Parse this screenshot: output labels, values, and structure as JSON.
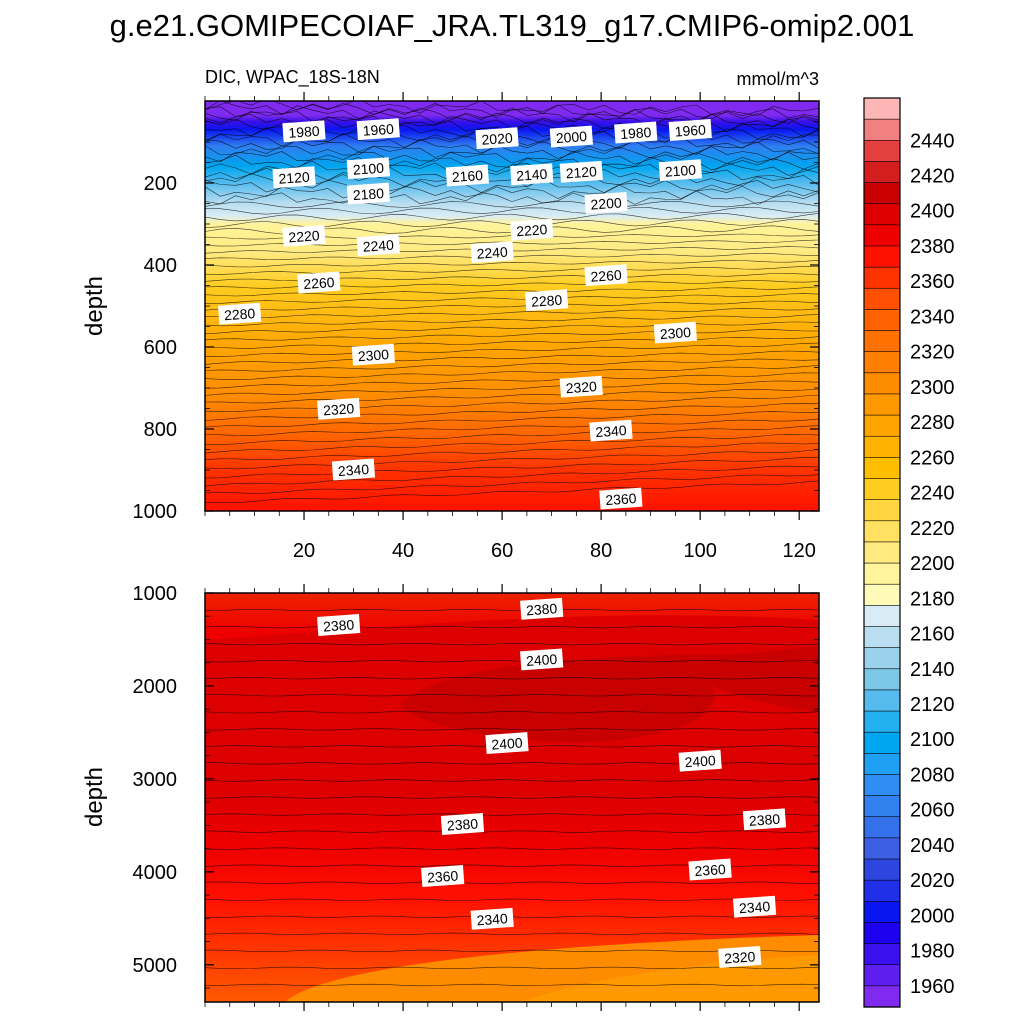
{
  "title": "g.e21.GOMIPECOIAF_JRA.TL319_g17.CMIP6-omip2.001",
  "colorbar": {
    "labels": [
      "2440",
      "2420",
      "2400",
      "2380",
      "2360",
      "2340",
      "2320",
      "2300",
      "2280",
      "2260",
      "2240",
      "2220",
      "2200",
      "2180",
      "2160",
      "2140",
      "2120",
      "2100",
      "2080",
      "2060",
      "2040",
      "2020",
      "2000",
      "1980",
      "1960"
    ],
    "colors": [
      "#fdb6b6",
      "#f28080",
      "#e54040",
      "#d41e1e",
      "#c80000",
      "#dd0000",
      "#ee0000",
      "#ff1100",
      "#ff3300",
      "#ff4f00",
      "#ff6200",
      "#ff7100",
      "#ff7f00",
      "#ff8c00",
      "#ff9900",
      "#ffa500",
      "#ffb200",
      "#ffbe00",
      "#ffcc20",
      "#ffd640",
      "#ffe060",
      "#ffea80",
      "#fff39b",
      "#fffab8",
      "#d9ecf5",
      "#b8def0",
      "#9ad2ec",
      "#7cc6e8",
      "#55bbee",
      "#22b0f0",
      "#00a6ef",
      "#1ea0f5",
      "#2f8ef2",
      "#3380f0",
      "#3470ea",
      "#3d5fe3",
      "#2e46e0",
      "#1f30e8",
      "#0a16f0",
      "#1c00ee",
      "#3c10ee",
      "#5e1fee",
      "#7f2aee"
    ]
  },
  "chart_data": [
    {
      "type": "heatmap",
      "title": "DIC, WPAC_18S-18N",
      "units": "mmol/m^3",
      "xlabel": "",
      "ylabel": "depth",
      "xlim": [
        0,
        124
      ],
      "ylim": [
        0,
        1000
      ],
      "yreversed": true,
      "x_ticks": [
        "20",
        "40",
        "60",
        "80",
        "100",
        "120"
      ],
      "y_ticks": [
        "200",
        "400",
        "600",
        "800",
        "1000"
      ],
      "contour_labels": [
        {
          "value": "1980",
          "x": 20,
          "y": 75
        },
        {
          "value": "1960",
          "x": 35,
          "y": 70
        },
        {
          "value": "2020",
          "x": 59,
          "y": 92
        },
        {
          "value": "2000",
          "x": 74,
          "y": 88
        },
        {
          "value": "1980",
          "x": 87,
          "y": 78
        },
        {
          "value": "1960",
          "x": 98,
          "y": 72
        },
        {
          "value": "2120",
          "x": 18,
          "y": 187
        },
        {
          "value": "2100",
          "x": 33,
          "y": 165
        },
        {
          "value": "2160",
          "x": 53,
          "y": 183
        },
        {
          "value": "2140",
          "x": 66,
          "y": 180
        },
        {
          "value": "2120",
          "x": 76,
          "y": 174
        },
        {
          "value": "2100",
          "x": 96,
          "y": 170
        },
        {
          "value": "2180",
          "x": 33,
          "y": 227
        },
        {
          "value": "2200",
          "x": 81,
          "y": 250
        },
        {
          "value": "2220",
          "x": 20,
          "y": 330
        },
        {
          "value": "2240",
          "x": 35,
          "y": 353
        },
        {
          "value": "2220",
          "x": 66,
          "y": 315
        },
        {
          "value": "2240",
          "x": 58,
          "y": 370
        },
        {
          "value": "2260",
          "x": 23,
          "y": 444
        },
        {
          "value": "2260",
          "x": 81,
          "y": 426
        },
        {
          "value": "2280",
          "x": 7,
          "y": 520
        },
        {
          "value": "2280",
          "x": 69,
          "y": 487
        },
        {
          "value": "2300",
          "x": 95,
          "y": 566
        },
        {
          "value": "2300",
          "x": 34,
          "y": 620
        },
        {
          "value": "2320",
          "x": 76,
          "y": 698
        },
        {
          "value": "2320",
          "x": 27,
          "y": 752
        },
        {
          "value": "2340",
          "x": 82,
          "y": 805
        },
        {
          "value": "2340",
          "x": 30,
          "y": 900
        },
        {
          "value": "2360",
          "x": 84,
          "y": 971
        }
      ]
    },
    {
      "type": "heatmap",
      "title": "",
      "xlabel": "",
      "ylabel": "depth",
      "xlim": [
        0,
        124
      ],
      "ylim": [
        1000,
        5400
      ],
      "yreversed": true,
      "x_ticks": [],
      "y_ticks": [
        "1000",
        "2000",
        "3000",
        "4000",
        "5000"
      ],
      "contour_labels": [
        {
          "value": "2380",
          "x": 68,
          "y": 1175
        },
        {
          "value": "2380",
          "x": 27,
          "y": 1350
        },
        {
          "value": "2400",
          "x": 68,
          "y": 1720
        },
        {
          "value": "2400",
          "x": 61,
          "y": 2620
        },
        {
          "value": "2400",
          "x": 100,
          "y": 2810
        },
        {
          "value": "2380",
          "x": 52,
          "y": 3490
        },
        {
          "value": "2380",
          "x": 113,
          "y": 3440
        },
        {
          "value": "2360",
          "x": 48,
          "y": 4050
        },
        {
          "value": "2360",
          "x": 102,
          "y": 3980
        },
        {
          "value": "2340",
          "x": 58,
          "y": 4510
        },
        {
          "value": "2340",
          "x": 111,
          "y": 4380
        },
        {
          "value": "2320",
          "x": 108,
          "y": 4920
        }
      ]
    }
  ]
}
